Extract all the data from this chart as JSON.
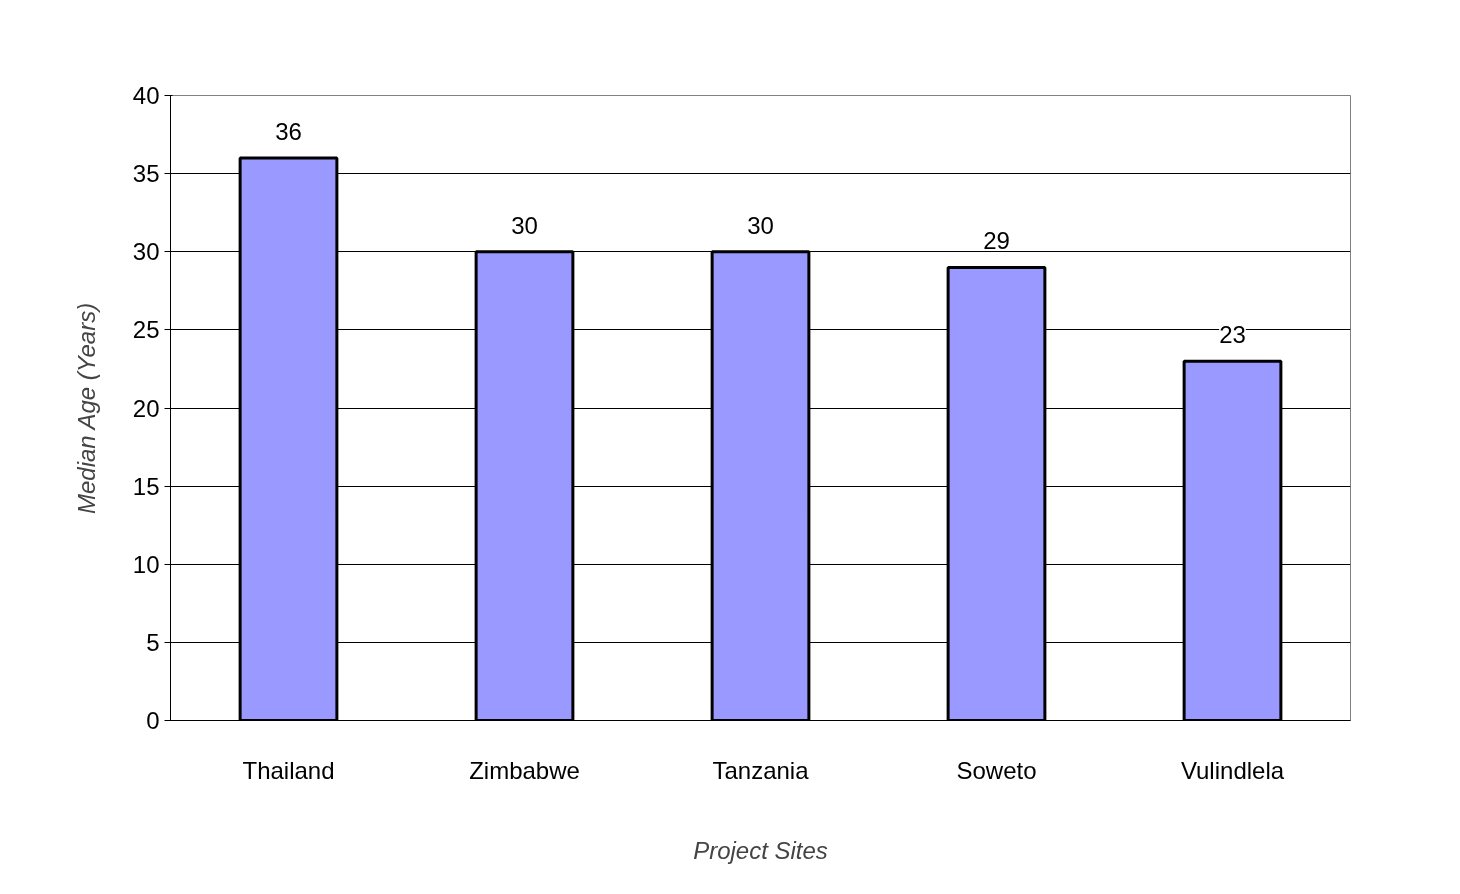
{
  "chart_data": {
    "type": "bar",
    "xlabel": "Project Sites",
    "ylabel": "Median Age (Years)",
    "categories": [
      "Thailand",
      "Zimbabwe",
      "Tanzania",
      "Soweto",
      "Vulindlela"
    ],
    "values": [
      36,
      30,
      30,
      29,
      23
    ],
    "color": "#9999ff",
    "ylim": [
      0,
      40
    ],
    "yticks": [
      0,
      5,
      10,
      15,
      20,
      25,
      30,
      35,
      40
    ],
    "grid": "y",
    "data_labels": true
  }
}
